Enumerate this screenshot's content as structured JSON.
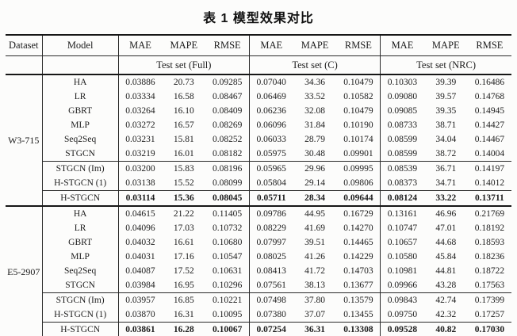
{
  "title": "表 1 模型效果对比",
  "colors": {
    "background": "#fcfcfb",
    "text": "#1c1c1c",
    "rule": "#161616"
  },
  "table": {
    "columns": {
      "dataset": "Dataset",
      "model": "Model",
      "metrics": [
        "MAE",
        "MAPE",
        "RMSE"
      ],
      "groups": [
        "Test set (Full)",
        "Test set (C)",
        "Test set (NRC)"
      ]
    },
    "datasets": [
      {
        "name": "W3-715",
        "sections": [
          {
            "bold": false,
            "rows": [
              {
                "model": "HA",
                "values": [
                  "0.03886",
                  "20.73",
                  "0.09285",
                  "0.07040",
                  "34.36",
                  "0.10479",
                  "0.10303",
                  "39.39",
                  "0.16486"
                ]
              },
              {
                "model": "LR",
                "values": [
                  "0.03334",
                  "16.58",
                  "0.08467",
                  "0.06469",
                  "33.52",
                  "0.10582",
                  "0.09080",
                  "39.57",
                  "0.14768"
                ]
              },
              {
                "model": "GBRT",
                "values": [
                  "0.03264",
                  "16.10",
                  "0.08409",
                  "0.06236",
                  "32.08",
                  "0.10479",
                  "0.09085",
                  "39.35",
                  "0.14945"
                ]
              },
              {
                "model": "MLP",
                "values": [
                  "0.03272",
                  "16.57",
                  "0.08269",
                  "0.06096",
                  "31.84",
                  "0.10190",
                  "0.08733",
                  "38.71",
                  "0.14427"
                ]
              },
              {
                "model": "Seq2Seq",
                "values": [
                  "0.03231",
                  "15.81",
                  "0.08252",
                  "0.06033",
                  "28.79",
                  "0.10174",
                  "0.08599",
                  "34.04",
                  "0.14467"
                ]
              },
              {
                "model": "STGCN",
                "values": [
                  "0.03219",
                  "16.01",
                  "0.08182",
                  "0.05975",
                  "30.48",
                  "0.09901",
                  "0.08599",
                  "38.72",
                  "0.14004"
                ]
              }
            ]
          },
          {
            "bold": false,
            "rows": [
              {
                "model": "STGCN (Im)",
                "values": [
                  "0.03200",
                  "15.83",
                  "0.08196",
                  "0.05965",
                  "29.96",
                  "0.09995",
                  "0.08539",
                  "36.71",
                  "0.14197"
                ]
              },
              {
                "model": "H-STGCN (1)",
                "values": [
                  "0.03138",
                  "15.52",
                  "0.08099",
                  "0.05804",
                  "29.14",
                  "0.09806",
                  "0.08373",
                  "34.71",
                  "0.14012"
                ]
              }
            ]
          },
          {
            "bold": true,
            "rows": [
              {
                "model": "H-STGCN",
                "values": [
                  "0.03114",
                  "15.36",
                  "0.08045",
                  "0.05711",
                  "28.34",
                  "0.09644",
                  "0.08124",
                  "33.22",
                  "0.13711"
                ]
              }
            ]
          }
        ]
      },
      {
        "name": "E5-2907",
        "sections": [
          {
            "bold": false,
            "rows": [
              {
                "model": "HA",
                "values": [
                  "0.04615",
                  "21.22",
                  "0.11405",
                  "0.09786",
                  "44.95",
                  "0.16729",
                  "0.13161",
                  "46.96",
                  "0.21769"
                ]
              },
              {
                "model": "LR",
                "values": [
                  "0.04096",
                  "17.03",
                  "0.10732",
                  "0.08229",
                  "41.69",
                  "0.14270",
                  "0.10747",
                  "47.01",
                  "0.18192"
                ]
              },
              {
                "model": "GBRT",
                "values": [
                  "0.04032",
                  "16.61",
                  "0.10680",
                  "0.07997",
                  "39.51",
                  "0.14465",
                  "0.10657",
                  "44.68",
                  "0.18593"
                ]
              },
              {
                "model": "MLP",
                "values": [
                  "0.04031",
                  "17.16",
                  "0.10547",
                  "0.08025",
                  "41.26",
                  "0.14229",
                  "0.10580",
                  "45.84",
                  "0.18236"
                ]
              },
              {
                "model": "Seq2Seq",
                "values": [
                  "0.04087",
                  "17.52",
                  "0.10631",
                  "0.08413",
                  "41.72",
                  "0.14703",
                  "0.10981",
                  "44.81",
                  "0.18722"
                ]
              },
              {
                "model": "STGCN",
                "values": [
                  "0.03984",
                  "16.95",
                  "0.10296",
                  "0.07561",
                  "38.13",
                  "0.13677",
                  "0.09966",
                  "43.28",
                  "0.17563"
                ]
              }
            ]
          },
          {
            "bold": false,
            "rows": [
              {
                "model": "STGCN (Im)",
                "values": [
                  "0.03957",
                  "16.85",
                  "0.10221",
                  "0.07498",
                  "37.80",
                  "0.13579",
                  "0.09843",
                  "42.74",
                  "0.17399"
                ]
              },
              {
                "model": "H-STGCN (1)",
                "values": [
                  "0.03870",
                  "16.31",
                  "0.10095",
                  "0.07380",
                  "37.07",
                  "0.13455",
                  "0.09750",
                  "42.32",
                  "0.17257"
                ]
              }
            ]
          },
          {
            "bold": true,
            "rows": [
              {
                "model": "H-STGCN",
                "values": [
                  "0.03861",
                  "16.28",
                  "0.10067",
                  "0.07254",
                  "36.31",
                  "0.13308",
                  "0.09528",
                  "40.82",
                  "0.17030"
                ]
              }
            ]
          }
        ]
      }
    ]
  }
}
